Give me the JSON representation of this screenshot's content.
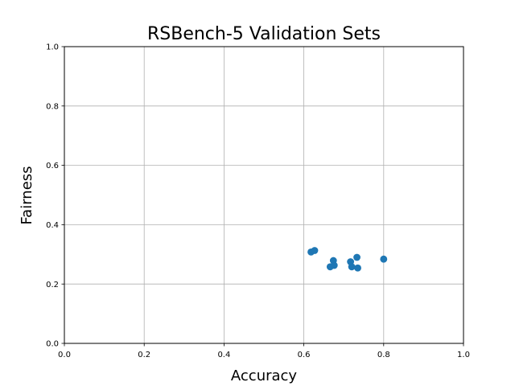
{
  "chart_data": {
    "type": "scatter",
    "title": "RSBench-5 Validation Sets",
    "xlabel": "Accuracy",
    "ylabel": "Fairness",
    "xlim": [
      0.0,
      1.0
    ],
    "ylim": [
      0.0,
      1.0
    ],
    "xticks": [
      "0.0",
      "0.2",
      "0.4",
      "0.6",
      "0.8",
      "1.0"
    ],
    "yticks": [
      "0.0",
      "0.2",
      "0.4",
      "0.6",
      "0.8",
      "1.0"
    ],
    "grid": true,
    "marker_color": "#1f77b4",
    "series": [
      {
        "points": [
          {
            "x": 0.618,
            "y": 0.308
          },
          {
            "x": 0.627,
            "y": 0.313
          },
          {
            "x": 0.666,
            "y": 0.258
          },
          {
            "x": 0.674,
            "y": 0.279
          },
          {
            "x": 0.676,
            "y": 0.263
          },
          {
            "x": 0.717,
            "y": 0.275
          },
          {
            "x": 0.72,
            "y": 0.258
          },
          {
            "x": 0.733,
            "y": 0.29
          },
          {
            "x": 0.735,
            "y": 0.254
          },
          {
            "x": 0.8,
            "y": 0.284
          }
        ]
      }
    ]
  }
}
